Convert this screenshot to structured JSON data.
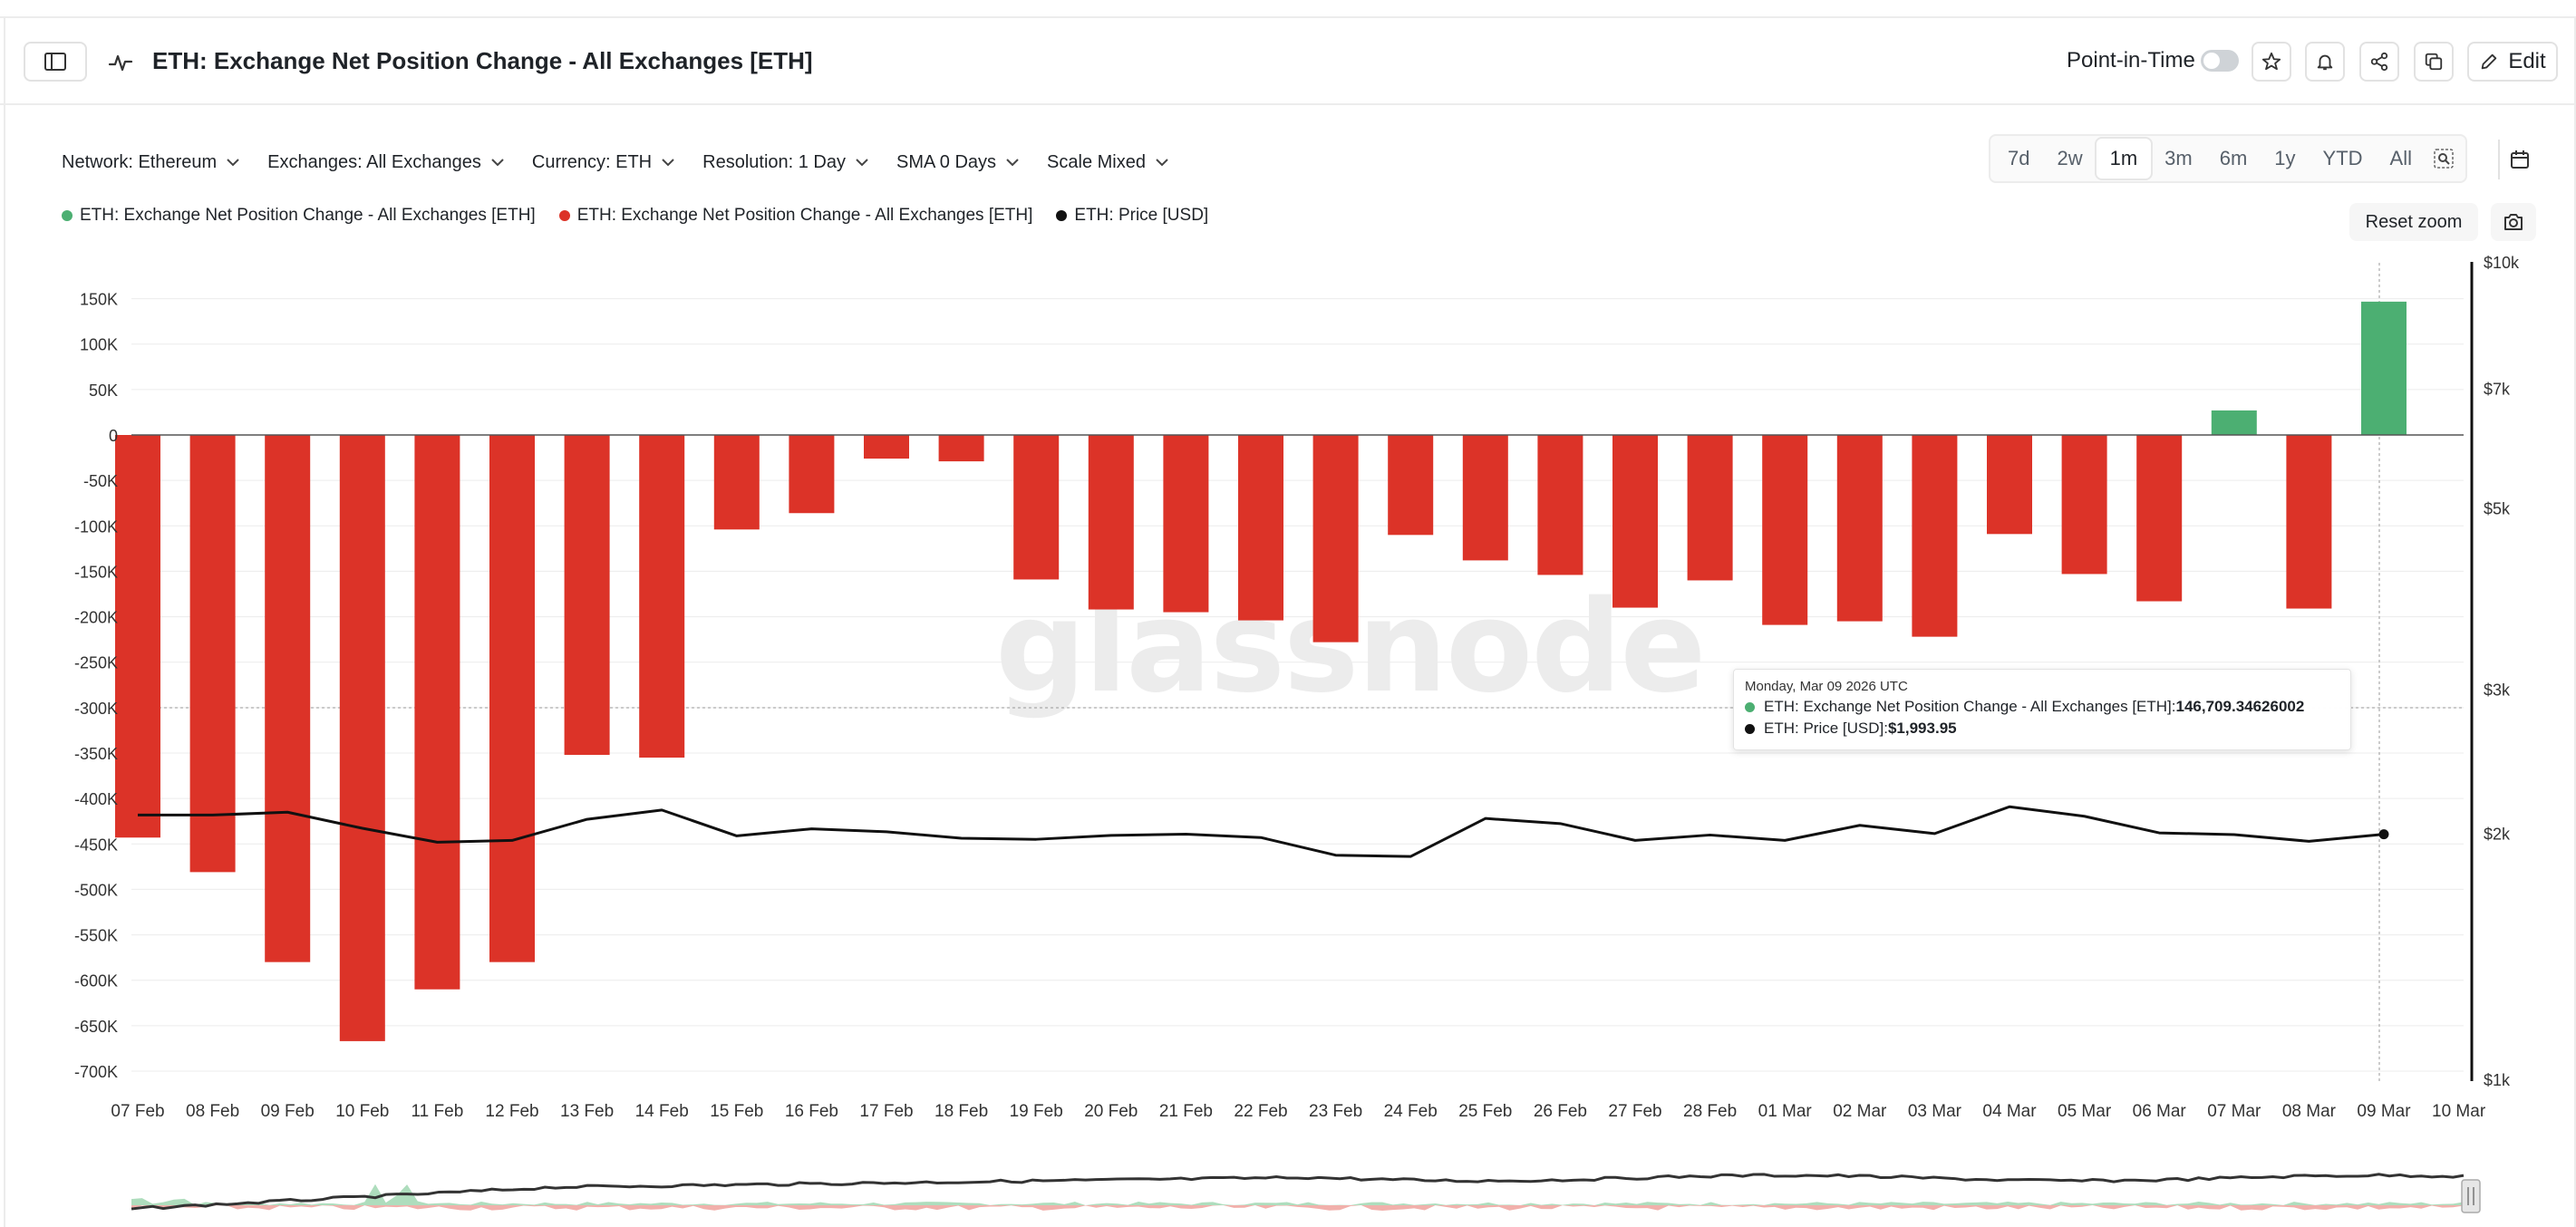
{
  "header": {
    "title": "ETH: Exchange Net Position Change - All Exchanges [ETH]",
    "point_in_time_label": "Point-in-Time",
    "edit_label": "Edit"
  },
  "filters": [
    "Network: Ethereum",
    "Exchanges: All Exchanges",
    "Currency: ETH",
    "Resolution: 1 Day",
    "SMA 0 Days",
    "Scale Mixed"
  ],
  "ranges": [
    "7d",
    "2w",
    "1m",
    "3m",
    "6m",
    "1y",
    "YTD",
    "All"
  ],
  "active_range": "1m",
  "legend": [
    {
      "label": "ETH: Exchange Net Position Change - All Exchanges [ETH]",
      "color": "#4caf72"
    },
    {
      "label": "ETH: Exchange Net Position Change - All Exchanges [ETH]",
      "color": "#dc3328"
    },
    {
      "label": "ETH: Price [USD]",
      "color": "#111111"
    }
  ],
  "reset_zoom_label": "Reset zoom",
  "watermark": "glassnode",
  "tooltip": {
    "date": "Monday, Mar 09 2026 UTC",
    "series1_label": "ETH: Exchange Net Position Change - All Exchanges [ETH]: ",
    "series1_value": "146,709.34626002",
    "series2_label": "ETH: Price [USD]: ",
    "series2_value": "$1,993.95"
  },
  "colors": {
    "positive": "#4caf72",
    "negative": "#dc3328",
    "price": "#111111",
    "grid": "#ececec"
  },
  "chart_data": {
    "type": "bar",
    "title": "ETH: Exchange Net Position Change - All Exchanges [ETH]",
    "categories": [
      "07 Feb",
      "08 Feb",
      "09 Feb",
      "10 Feb",
      "11 Feb",
      "12 Feb",
      "13 Feb",
      "14 Feb",
      "15 Feb",
      "16 Feb",
      "17 Feb",
      "18 Feb",
      "19 Feb",
      "20 Feb",
      "21 Feb",
      "22 Feb",
      "23 Feb",
      "24 Feb",
      "25 Feb",
      "26 Feb",
      "27 Feb",
      "28 Feb",
      "01 Mar",
      "02 Mar",
      "03 Mar",
      "04 Mar",
      "05 Mar",
      "06 Mar",
      "07 Mar",
      "08 Mar",
      "09 Mar",
      "10 Mar"
    ],
    "series": [
      {
        "name": "ETH: Exchange Net Position Change - All Exchanges [ETH]",
        "axis": "left",
        "values": [
          -443000,
          -481000,
          -580000,
          -667000,
          -610000,
          -580000,
          -352000,
          -355000,
          -104000,
          -86000,
          -26000,
          -29000,
          -159000,
          -192000,
          -195000,
          -204000,
          -228000,
          -110000,
          -138000,
          -154000,
          -190000,
          -160000,
          -209000,
          -205000,
          -222000,
          -109000,
          -153000,
          -183000,
          27000,
          -191000,
          146709,
          null
        ]
      },
      {
        "name": "ETH: Price [USD]",
        "axis": "right",
        "type": "line",
        "values": [
          2105,
          2105,
          2122,
          2028,
          1950,
          1960,
          2080,
          2135,
          1985,
          2025,
          2008,
          1972,
          1966,
          1988,
          1995,
          1976,
          1880,
          1873,
          2085,
          2055,
          1960,
          1990,
          1960,
          2045,
          1998,
          2155,
          2098,
          2002,
          1992,
          1955,
          1993.95,
          null
        ]
      }
    ],
    "y_left": {
      "min": -700000,
      "max": 150000,
      "ticks": [
        150000,
        100000,
        50000,
        0,
        -50000,
        -100000,
        -150000,
        -200000,
        -250000,
        -300000,
        -350000,
        -400000,
        -450000,
        -500000,
        -550000,
        -600000,
        -650000,
        -700000
      ],
      "tick_labels": [
        "150K",
        "100K",
        "50K",
        "0",
        "-50K",
        "-100K",
        "-150K",
        "-200K",
        "-250K",
        "-300K",
        "-350K",
        "-400K",
        "-450K",
        "-500K",
        "-550K",
        "-600K",
        "-650K",
        "-700K"
      ]
    },
    "y_right": {
      "scale": "log",
      "min": 1000,
      "max": 10000,
      "ticks": [
        10000,
        7000,
        5000,
        3000,
        2000,
        1000
      ],
      "tick_labels": [
        "$10k",
        "$7k",
        "$5k",
        "$3k",
        "$2k",
        "$1k"
      ]
    },
    "grid": true,
    "legend_position": "top-left"
  }
}
